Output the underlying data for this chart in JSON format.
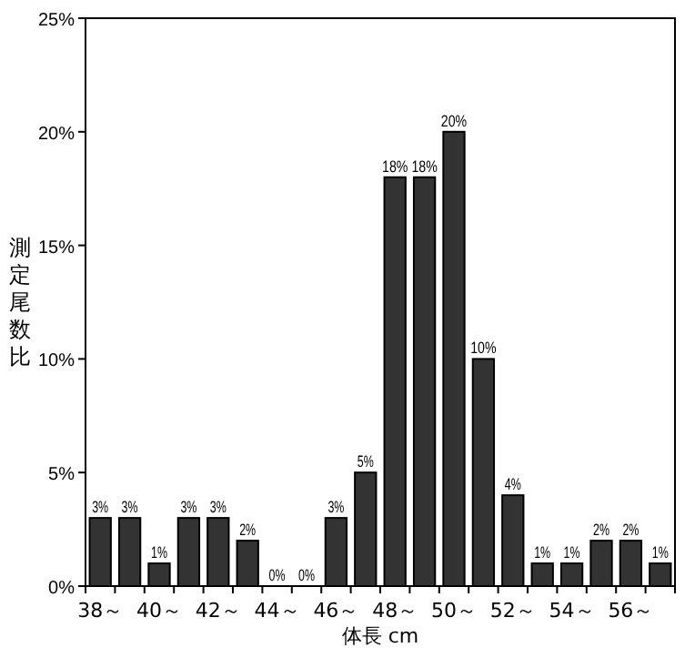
{
  "chart_data": {
    "type": "bar",
    "categories": [
      "38～",
      null,
      "40～",
      null,
      "42～",
      null,
      "44～",
      null,
      "46～",
      null,
      "48～",
      null,
      "50～",
      null,
      "52～",
      null,
      "54～",
      null,
      "56～",
      null
    ],
    "values": [
      3,
      3,
      1,
      3,
      3,
      2,
      0,
      0,
      3,
      5,
      18,
      18,
      20,
      10,
      4,
      1,
      1,
      2,
      2,
      1
    ],
    "value_labels": [
      "3%",
      "3%",
      "1%",
      "3%",
      "3%",
      "2%",
      "0%",
      "0%",
      "3%",
      "5%",
      "18%",
      "18%",
      "20%",
      "10%",
      "4%",
      "1%",
      "1%",
      "2%",
      "2%",
      "1%"
    ],
    "color": "#333333",
    "ylim": [
      0,
      25
    ],
    "yticks": [
      {
        "value": 0,
        "label": "0%"
      },
      {
        "value": 5,
        "label": "5%"
      },
      {
        "value": 10,
        "label": "10%"
      },
      {
        "value": 15,
        "label": "15%"
      },
      {
        "value": 20,
        "label": "20%"
      },
      {
        "value": 25,
        "label": "25%"
      }
    ],
    "ylabel": "測定尾数比",
    "xlabel": "体長 cm",
    "grid": false
  }
}
